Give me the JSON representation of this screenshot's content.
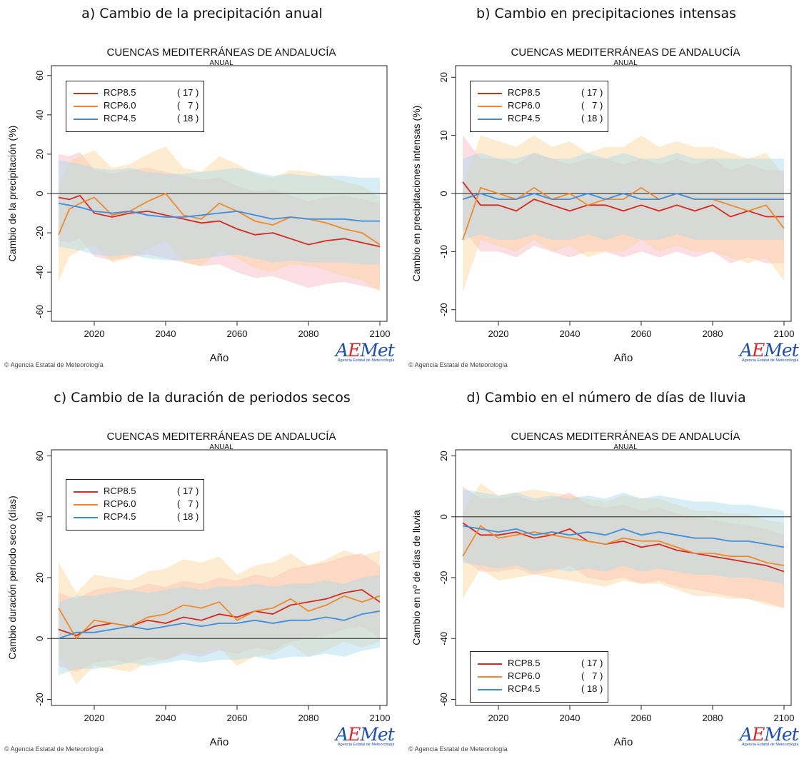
{
  "credit": "© Agencia Estatal de Meteorología",
  "logo": {
    "wordmark": "AEMet",
    "subtitle": "Agencia Estatal de Meteorología"
  },
  "legend_entries": [
    {
      "name": "RCP8.5",
      "count": "( 17 )",
      "color": "#d62a1e"
    },
    {
      "name": "RCP6.0",
      "count": "(   7 )",
      "color": "#ef8a2c"
    },
    {
      "name": "RCP4.5",
      "count": "( 18 )",
      "color": "#3c8ee0"
    }
  ],
  "band_colors": {
    "RCP8.5": "#f7b5c4",
    "RCP6.0": "#fbd39c",
    "RCP4.5": "#a9d9ec"
  },
  "chart_data": [
    {
      "type": "line",
      "heading": "a) Cambio de la precipitación anual",
      "title": "CUENCAS MEDITERRÁNEAS DE ANDALUCÍA",
      "subtitle": "ANUAL",
      "xlabel": "Año",
      "ylabel": "Cambio de la precipitación (%)",
      "xlim": [
        2008,
        2102
      ],
      "ylim": [
        -65,
        65
      ],
      "zero_line": true,
      "grid": false,
      "xticks": [
        2020,
        2040,
        2060,
        2080,
        2100
      ],
      "yticks": [
        -60,
        -40,
        -20,
        0,
        20,
        40,
        60
      ],
      "legend_position": "top-left",
      "series": [
        {
          "name": "RCP8.5",
          "x": [
            2010,
            2013,
            2016,
            2020,
            2025,
            2030,
            2035,
            2040,
            2045,
            2050,
            2055,
            2060,
            2065,
            2070,
            2075,
            2080,
            2085,
            2090,
            2095,
            2100
          ],
          "y": [
            -2,
            -3,
            -1,
            -10,
            -12,
            -10,
            -9,
            -11,
            -13,
            -15,
            -14,
            -18,
            -21,
            -20,
            -23,
            -26,
            -24,
            -23,
            -25,
            -27
          ],
          "band": 22
        },
        {
          "name": "RCP6.0",
          "x": [
            2010,
            2013,
            2016,
            2020,
            2025,
            2030,
            2035,
            2040,
            2045,
            2050,
            2055,
            2060,
            2065,
            2070,
            2075,
            2080,
            2085,
            2090,
            2095,
            2100
          ],
          "y": [
            -21,
            -8,
            -5,
            -2,
            -11,
            -9,
            -4,
            0,
            -11,
            -13,
            -5,
            -9,
            -14,
            -16,
            -12,
            -13,
            -15,
            -18,
            -20,
            -26
          ],
          "band": 24
        },
        {
          "name": "RCP4.5",
          "x": [
            2010,
            2013,
            2016,
            2020,
            2025,
            2030,
            2035,
            2040,
            2045,
            2050,
            2055,
            2060,
            2065,
            2070,
            2075,
            2080,
            2085,
            2090,
            2095,
            2100
          ],
          "y": [
            -5,
            -6,
            -7,
            -9,
            -10,
            -9,
            -11,
            -12,
            -12,
            -11,
            -10,
            -9,
            -11,
            -13,
            -12,
            -13,
            -13,
            -13,
            -14,
            -14
          ],
          "band": 22
        }
      ]
    },
    {
      "type": "line",
      "heading": "b) Cambio en precipitaciones intensas",
      "title": "CUENCAS MEDITERRÁNEAS DE ANDALUCÍA",
      "subtitle": "ANUAL",
      "xlabel": "Año",
      "ylabel": "Cambio en precipitaciones intensas (%)",
      "xlim": [
        2008,
        2102
      ],
      "ylim": [
        -22,
        22
      ],
      "zero_line": true,
      "grid": false,
      "xticks": [
        2020,
        2040,
        2060,
        2080,
        2100
      ],
      "yticks": [
        -20,
        -10,
        0,
        10,
        20
      ],
      "legend_position": "top-left",
      "series": [
        {
          "name": "RCP8.5",
          "x": [
            2010,
            2015,
            2020,
            2025,
            2030,
            2035,
            2040,
            2045,
            2050,
            2055,
            2060,
            2065,
            2070,
            2075,
            2080,
            2085,
            2090,
            2095,
            2100
          ],
          "y": [
            2,
            -2,
            -2,
            -3,
            -1,
            -2,
            -3,
            -2,
            -2,
            -3,
            -2,
            -3,
            -2,
            -3,
            -2,
            -4,
            -3,
            -4,
            -4
          ],
          "band": 8
        },
        {
          "name": "RCP6.0",
          "x": [
            2010,
            2015,
            2020,
            2025,
            2030,
            2035,
            2040,
            2045,
            2050,
            2055,
            2060,
            2065,
            2070,
            2075,
            2080,
            2085,
            2090,
            2095,
            2100
          ],
          "y": [
            -8,
            1,
            0,
            -1,
            1,
            -1,
            0,
            -2,
            -1,
            -1,
            1,
            -1,
            0,
            -1,
            -1,
            -2,
            -3,
            -2,
            -6
          ],
          "band": 9
        },
        {
          "name": "RCP4.5",
          "x": [
            2010,
            2015,
            2020,
            2025,
            2030,
            2035,
            2040,
            2045,
            2050,
            2055,
            2060,
            2065,
            2070,
            2075,
            2080,
            2085,
            2090,
            2095,
            2100
          ],
          "y": [
            -1,
            0,
            -1,
            -1,
            0,
            -1,
            -1,
            0,
            -1,
            0,
            -1,
            -1,
            0,
            -1,
            -1,
            -1,
            -1,
            -1,
            -1
          ],
          "band": 7
        }
      ]
    },
    {
      "type": "line",
      "heading": "c) Cambio de la duración de periodos secos",
      "title": "CUENCAS MEDITERRÁNEAS DE ANDALUCÍA",
      "subtitle": "ANUAL",
      "xlabel": "Año",
      "ylabel": "Cambio duración periodo seco (días)",
      "xlim": [
        2008,
        2102
      ],
      "ylim": [
        -22,
        62
      ],
      "zero_line": true,
      "grid": false,
      "xticks": [
        2020,
        2040,
        2060,
        2080,
        2100
      ],
      "yticks": [
        -20,
        0,
        20,
        40,
        60
      ],
      "legend_position": "top-left",
      "series": [
        {
          "name": "RCP8.5",
          "x": [
            2010,
            2015,
            2020,
            2025,
            2030,
            2035,
            2040,
            2045,
            2050,
            2055,
            2060,
            2065,
            2070,
            2075,
            2080,
            2085,
            2090,
            2095,
            2100
          ],
          "y": [
            3,
            1,
            4,
            5,
            4,
            6,
            5,
            7,
            6,
            8,
            7,
            9,
            8,
            11,
            12,
            13,
            15,
            16,
            12
          ],
          "band": 12
        },
        {
          "name": "RCP6.0",
          "x": [
            2010,
            2015,
            2020,
            2025,
            2030,
            2035,
            2040,
            2045,
            2050,
            2055,
            2060,
            2065,
            2070,
            2075,
            2080,
            2085,
            2090,
            2095,
            2100
          ],
          "y": [
            10,
            0,
            6,
            5,
            4,
            7,
            8,
            11,
            10,
            12,
            6,
            9,
            10,
            13,
            9,
            11,
            14,
            12,
            14
          ],
          "band": 15
        },
        {
          "name": "RCP4.5",
          "x": [
            2010,
            2015,
            2020,
            2025,
            2030,
            2035,
            2040,
            2045,
            2050,
            2055,
            2060,
            2065,
            2070,
            2075,
            2080,
            2085,
            2090,
            2095,
            2100
          ],
          "y": [
            0,
            2,
            2,
            3,
            4,
            3,
            4,
            5,
            4,
            5,
            5,
            6,
            5,
            6,
            6,
            7,
            6,
            8,
            9
          ],
          "band": 12
        }
      ]
    },
    {
      "type": "line",
      "heading": "d) Cambio en el número de días de lluvia",
      "title": "CUENCAS MEDITERRÁNEAS DE ANDALUCÍA",
      "subtitle": "ANUAL",
      "xlabel": "Año",
      "ylabel": "Cambio en nº de días de lluvia",
      "xlim": [
        2008,
        2102
      ],
      "ylim": [
        -62,
        22
      ],
      "zero_line": true,
      "grid": false,
      "xticks": [
        2020,
        2040,
        2060,
        2080,
        2100
      ],
      "yticks": [
        -60,
        -40,
        -20,
        0,
        20
      ],
      "legend_position": "bottom-left",
      "series": [
        {
          "name": "RCP8.5",
          "x": [
            2010,
            2015,
            2020,
            2025,
            2030,
            2035,
            2040,
            2045,
            2050,
            2055,
            2060,
            2065,
            2070,
            2075,
            2080,
            2085,
            2090,
            2095,
            2100
          ],
          "y": [
            -2,
            -6,
            -6,
            -5,
            -7,
            -6,
            -4,
            -8,
            -9,
            -8,
            -10,
            -9,
            -11,
            -12,
            -13,
            -14,
            -15,
            -16,
            -18
          ],
          "band": 12
        },
        {
          "name": "RCP6.0",
          "x": [
            2010,
            2015,
            2020,
            2025,
            2030,
            2035,
            2040,
            2045,
            2050,
            2055,
            2060,
            2065,
            2070,
            2075,
            2080,
            2085,
            2090,
            2095,
            2100
          ],
          "y": [
            -13,
            -3,
            -7,
            -6,
            -5,
            -6,
            -7,
            -8,
            -9,
            -7,
            -8,
            -8,
            -10,
            -12,
            -12,
            -13,
            -13,
            -15,
            -16
          ],
          "band": 14
        },
        {
          "name": "RCP4.5",
          "x": [
            2010,
            2015,
            2020,
            2025,
            2030,
            2035,
            2040,
            2045,
            2050,
            2055,
            2060,
            2065,
            2070,
            2075,
            2080,
            2085,
            2090,
            2095,
            2100
          ],
          "y": [
            -3,
            -4,
            -5,
            -4,
            -6,
            -5,
            -6,
            -5,
            -6,
            -4,
            -6,
            -5,
            -6,
            -7,
            -7,
            -8,
            -8,
            -9,
            -10
          ],
          "band": 12
        }
      ]
    }
  ]
}
